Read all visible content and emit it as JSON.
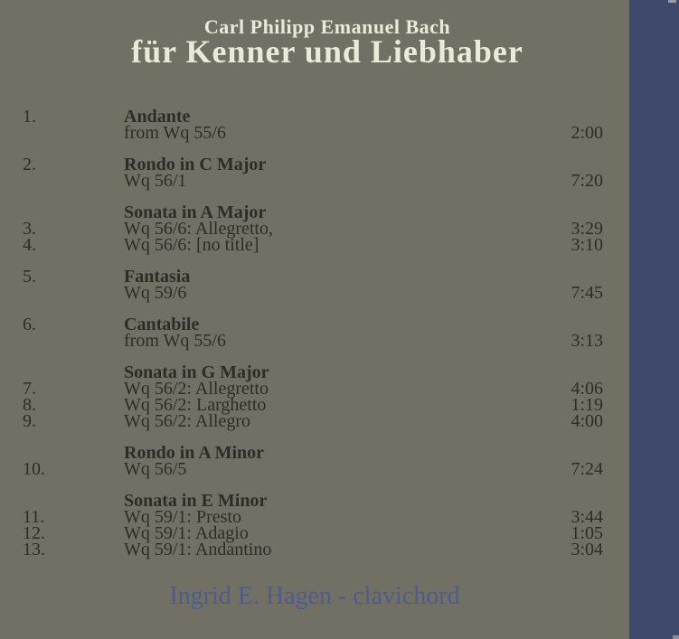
{
  "header": {
    "artist": "Carl Philipp Emanuel Bach",
    "title": "für Kenner und Liebhaber"
  },
  "tracklist": {
    "blocks": [
      {
        "lines": [
          {
            "num": "1.",
            "text": "Andante"
          },
          {
            "text": "from Wq 55/6",
            "time": "2:00"
          }
        ]
      },
      {
        "lines": [
          {
            "num": "2.",
            "text": "Rondo in C Major"
          },
          {
            "text": "Wq 56/1",
            "time": "7:20"
          }
        ]
      },
      {
        "lines": [
          {
            "text": "Sonata in A Major"
          },
          {
            "num": "3.",
            "text": "Wq 56/6: Allegretto,",
            "time": "3:29"
          },
          {
            "num": "4.",
            "text": "Wq 56/6: [no title]",
            "time": "3:10"
          }
        ]
      },
      {
        "lines": [
          {
            "num": "5.",
            "text": "Fantasia"
          },
          {
            "text": "Wq 59/6",
            "time": "7:45"
          }
        ]
      },
      {
        "lines": [
          {
            "num": "6.",
            "text": "Cantabile"
          },
          {
            "text": "from Wq 55/6",
            "time": "3:13"
          }
        ]
      },
      {
        "lines": [
          {
            "text": "Sonata in G Major"
          },
          {
            "num": "7.",
            "text": "Wq 56/2: Allegretto",
            "time": "4:06"
          },
          {
            "num": "8.",
            "text": "Wq 56/2: Larghetto",
            "time": "1:19"
          },
          {
            "num": "9.",
            "text": "Wq 56/2: Allegro",
            "time": "4:00"
          }
        ]
      },
      {
        "lines": [
          {
            "text": "Rondo in A Minor"
          },
          {
            "num": "10.",
            "text": "Wq 56/5",
            "time": "7:24"
          }
        ]
      },
      {
        "lines": [
          {
            "text": "Sonata in E Minor"
          },
          {
            "num": "11.",
            "text": "Wq 59/1: Presto",
            "time": "3:44"
          },
          {
            "num": "12.",
            "text": "Wq 59/1: Adagio",
            "time": "1:05"
          },
          {
            "num": "13.",
            "text": "Wq 59/1: Andantino",
            "time": "3:04"
          }
        ]
      }
    ]
  },
  "footer": {
    "credit": "Ingrid E. Hagen - clavichord"
  },
  "colors": {
    "background": "#727064",
    "spine_band": "#3f496b",
    "title_text": "#e9ead8",
    "track_text": "#2d2c27",
    "credit_text": "#4c5c8d"
  }
}
